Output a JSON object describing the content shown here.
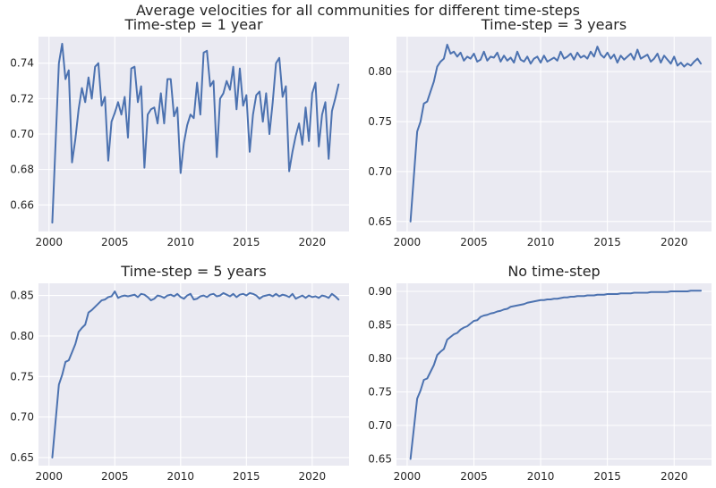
{
  "figure": {
    "title": "Average velocities for all communities for different time-steps",
    "line_color": "#4c72b0",
    "background_color": "#eaeaf2",
    "grid_color": "#ffffff"
  },
  "chart_data": [
    {
      "type": "line",
      "title": "Time-step = 1 year",
      "xlabel": "",
      "ylabel": "",
      "xlim": [
        1999.2,
        2022.8
      ],
      "ylim": [
        0.645,
        0.755
      ],
      "xticks": [
        2000,
        2005,
        2010,
        2015,
        2020
      ],
      "yticks": [
        0.66,
        0.68,
        0.7,
        0.72,
        0.74
      ],
      "ytick_labels": [
        "0.66",
        "0.68",
        "0.70",
        "0.72",
        "0.74"
      ],
      "grid": true,
      "series": [
        {
          "x_start": 2000.25,
          "x_step": 0.25,
          "values": [
            0.65,
            0.695,
            0.74,
            0.751,
            0.731,
            0.736,
            0.684,
            0.697,
            0.714,
            0.726,
            0.718,
            0.732,
            0.72,
            0.738,
            0.74,
            0.716,
            0.721,
            0.685,
            0.707,
            0.712,
            0.718,
            0.711,
            0.721,
            0.698,
            0.737,
            0.738,
            0.718,
            0.727,
            0.681,
            0.711,
            0.714,
            0.715,
            0.706,
            0.723,
            0.706,
            0.731,
            0.731,
            0.71,
            0.715,
            0.678,
            0.695,
            0.705,
            0.711,
            0.709,
            0.729,
            0.711,
            0.746,
            0.747,
            0.727,
            0.73,
            0.687,
            0.72,
            0.723,
            0.73,
            0.725,
            0.738,
            0.714,
            0.737,
            0.716,
            0.722,
            0.69,
            0.711,
            0.722,
            0.724,
            0.707,
            0.723,
            0.7,
            0.718,
            0.74,
            0.743,
            0.721,
            0.727,
            0.679,
            0.69,
            0.699,
            0.706,
            0.694,
            0.715,
            0.696,
            0.723,
            0.729,
            0.693,
            0.711,
            0.718,
            0.686,
            0.713,
            0.72,
            0.728
          ]
        }
      ]
    },
    {
      "type": "line",
      "title": "Time-step = 3 years",
      "xlabel": "",
      "ylabel": "",
      "xlim": [
        1999.2,
        2022.8
      ],
      "ylim": [
        0.64,
        0.835
      ],
      "xticks": [
        2000,
        2005,
        2010,
        2015,
        2020
      ],
      "yticks": [
        0.65,
        0.7,
        0.75,
        0.8
      ],
      "ytick_labels": [
        "0.65",
        "0.70",
        "0.75",
        "0.80"
      ],
      "grid": true,
      "series": [
        {
          "x_start": 2000.25,
          "x_step": 0.25,
          "values": [
            0.65,
            0.695,
            0.74,
            0.75,
            0.768,
            0.77,
            0.78,
            0.79,
            0.805,
            0.81,
            0.813,
            0.827,
            0.818,
            0.82,
            0.815,
            0.819,
            0.811,
            0.815,
            0.813,
            0.818,
            0.81,
            0.812,
            0.82,
            0.811,
            0.815,
            0.814,
            0.819,
            0.81,
            0.816,
            0.811,
            0.814,
            0.809,
            0.82,
            0.812,
            0.81,
            0.815,
            0.808,
            0.813,
            0.815,
            0.809,
            0.816,
            0.81,
            0.812,
            0.814,
            0.811,
            0.82,
            0.813,
            0.815,
            0.818,
            0.812,
            0.819,
            0.814,
            0.816,
            0.813,
            0.82,
            0.815,
            0.825,
            0.817,
            0.814,
            0.819,
            0.813,
            0.817,
            0.809,
            0.816,
            0.812,
            0.815,
            0.818,
            0.812,
            0.822,
            0.813,
            0.815,
            0.817,
            0.81,
            0.813,
            0.818,
            0.809,
            0.816,
            0.812,
            0.808,
            0.815,
            0.806,
            0.809,
            0.805,
            0.808,
            0.806,
            0.81,
            0.813,
            0.808
          ]
        }
      ]
    },
    {
      "type": "line",
      "title": "Time-step = 5 years",
      "xlabel": "",
      "ylabel": "",
      "xlim": [
        1999.2,
        2022.8
      ],
      "ylim": [
        0.64,
        0.865
      ],
      "xticks": [
        2000,
        2005,
        2010,
        2015,
        2020
      ],
      "yticks": [
        0.65,
        0.7,
        0.75,
        0.8,
        0.85
      ],
      "ytick_labels": [
        "0.65",
        "0.70",
        "0.75",
        "0.80",
        "0.85"
      ],
      "grid": true,
      "series": [
        {
          "x_start": 2000.25,
          "x_step": 0.25,
          "values": [
            0.65,
            0.695,
            0.74,
            0.752,
            0.768,
            0.77,
            0.78,
            0.79,
            0.805,
            0.81,
            0.814,
            0.829,
            0.832,
            0.836,
            0.84,
            0.844,
            0.845,
            0.848,
            0.849,
            0.855,
            0.847,
            0.849,
            0.85,
            0.849,
            0.85,
            0.851,
            0.848,
            0.852,
            0.851,
            0.848,
            0.844,
            0.846,
            0.85,
            0.849,
            0.847,
            0.85,
            0.851,
            0.849,
            0.852,
            0.848,
            0.846,
            0.85,
            0.852,
            0.845,
            0.846,
            0.849,
            0.85,
            0.848,
            0.851,
            0.852,
            0.849,
            0.85,
            0.853,
            0.851,
            0.849,
            0.852,
            0.848,
            0.851,
            0.852,
            0.85,
            0.853,
            0.852,
            0.85,
            0.846,
            0.849,
            0.85,
            0.851,
            0.849,
            0.852,
            0.849,
            0.851,
            0.85,
            0.848,
            0.852,
            0.846,
            0.848,
            0.85,
            0.847,
            0.85,
            0.848,
            0.849,
            0.847,
            0.85,
            0.849,
            0.847,
            0.852,
            0.849,
            0.845
          ]
        }
      ]
    },
    {
      "type": "line",
      "title": "No time-step",
      "xlabel": "",
      "ylabel": "",
      "xlim": [
        1999.2,
        2022.8
      ],
      "ylim": [
        0.64,
        0.912
      ],
      "xticks": [
        2000,
        2005,
        2010,
        2015,
        2020
      ],
      "yticks": [
        0.65,
        0.7,
        0.75,
        0.8,
        0.85,
        0.9
      ],
      "ytick_labels": [
        "0.65",
        "0.70",
        "0.75",
        "0.80",
        "0.85",
        "0.90"
      ],
      "grid": true,
      "series": [
        {
          "x_start": 2000.25,
          "x_step": 0.25,
          "values": [
            0.65,
            0.695,
            0.74,
            0.752,
            0.768,
            0.77,
            0.78,
            0.79,
            0.805,
            0.81,
            0.814,
            0.828,
            0.832,
            0.836,
            0.838,
            0.843,
            0.846,
            0.848,
            0.852,
            0.856,
            0.857,
            0.862,
            0.864,
            0.865,
            0.867,
            0.868,
            0.87,
            0.871,
            0.873,
            0.874,
            0.877,
            0.878,
            0.879,
            0.88,
            0.881,
            0.883,
            0.884,
            0.885,
            0.886,
            0.887,
            0.887,
            0.888,
            0.888,
            0.889,
            0.889,
            0.89,
            0.891,
            0.891,
            0.892,
            0.892,
            0.893,
            0.893,
            0.893,
            0.894,
            0.894,
            0.894,
            0.895,
            0.895,
            0.895,
            0.896,
            0.896,
            0.896,
            0.896,
            0.897,
            0.897,
            0.897,
            0.897,
            0.898,
            0.898,
            0.898,
            0.898,
            0.898,
            0.899,
            0.899,
            0.899,
            0.899,
            0.899,
            0.899,
            0.9,
            0.9,
            0.9,
            0.9,
            0.9,
            0.9,
            0.901,
            0.901,
            0.901,
            0.901
          ]
        }
      ]
    }
  ]
}
